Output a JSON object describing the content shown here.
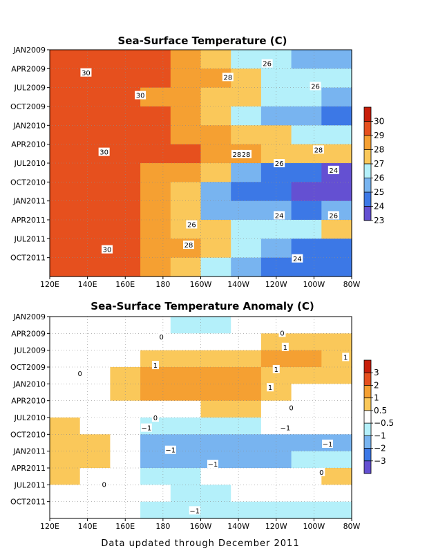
{
  "footer": "Data updated through December 2011",
  "chart_data": [
    {
      "type": "heatmap",
      "title": "Sea-Surface Temperature (C)",
      "x_ticks": [
        "120E",
        "140E",
        "160E",
        "180",
        "160W",
        "140W",
        "120W",
        "100W",
        "80W"
      ],
      "y_ticks": [
        "JAN2009",
        "APR2009",
        "JUL2009",
        "OCT2009",
        "JAN2010",
        "APR2010",
        "JUL2010",
        "OCT2010",
        "JAN2011",
        "APR2011",
        "JUL2011",
        "OCT2011"
      ],
      "xlim": [
        "120E",
        "80W"
      ],
      "ylim": [
        "JAN2009",
        "DEC2011"
      ],
      "grid": true,
      "colorbar": {
        "labels": [
          "30",
          "29",
          "28",
          "27",
          "26",
          "25",
          "24",
          "23"
        ],
        "colors": [
          "#c81e0a",
          "#e6501e",
          "#f5a032",
          "#fac85a",
          "#b4f0fa",
          "#78b4f0",
          "#3c78e6",
          "#6450d2"
        ]
      },
      "contour_labels": [
        "30",
        "30",
        "30",
        "30",
        "28",
        "28",
        "28",
        "26",
        "26",
        "28",
        "26",
        "24",
        "24",
        "26",
        "26",
        "28",
        "24"
      ],
      "cell_values": [
        [
          29.6,
          29.5,
          29.3,
          29.0,
          28.4,
          27.8,
          26.8,
          26.0,
          25.8,
          25.7
        ],
        [
          29.7,
          29.6,
          29.3,
          29.0,
          28.5,
          28.0,
          27.6,
          26.9,
          26.6,
          26.9
        ],
        [
          29.5,
          29.6,
          29.2,
          28.9,
          28.4,
          27.9,
          27.2,
          26.5,
          26.0,
          25.8
        ],
        [
          29.5,
          29.6,
          29.6,
          29.0,
          28.4,
          27.5,
          26.4,
          25.5,
          25.0,
          24.8
        ],
        [
          29.3,
          29.5,
          29.7,
          29.3,
          28.8,
          28.3,
          27.8,
          27.2,
          26.7,
          26.4
        ],
        [
          29.5,
          29.7,
          29.7,
          29.4,
          29.0,
          28.6,
          28.3,
          27.9,
          27.7,
          27.6
        ],
        [
          29.5,
          29.6,
          29.3,
          28.9,
          28.0,
          27.0,
          25.8,
          24.8,
          24.0,
          23.8
        ],
        [
          29.7,
          29.8,
          29.2,
          28.4,
          27.2,
          25.8,
          24.8,
          24.0,
          23.6,
          23.6
        ],
        [
          29.8,
          29.9,
          29.3,
          28.3,
          27.1,
          25.9,
          25.3,
          25.0,
          24.8,
          25.4
        ],
        [
          29.7,
          29.9,
          29.4,
          28.6,
          27.6,
          27.1,
          26.9,
          26.7,
          26.8,
          27.2
        ],
        [
          29.5,
          29.6,
          29.2,
          28.7,
          28.1,
          27.3,
          26.5,
          25.4,
          24.8,
          24.6
        ],
        [
          29.3,
          29.4,
          29.1,
          28.6,
          27.6,
          26.5,
          25.5,
          24.8,
          24.2,
          24.3
        ]
      ]
    },
    {
      "type": "heatmap",
      "title": "Sea-Surface Temperature Anomaly (C)",
      "x_ticks": [
        "120E",
        "140E",
        "160E",
        "180",
        "160W",
        "140W",
        "120W",
        "100W",
        "80W"
      ],
      "y_ticks": [
        "JAN2009",
        "APR2009",
        "JUL2009",
        "OCT2009",
        "JAN2010",
        "APR2010",
        "JUL2010",
        "OCT2010",
        "JAN2011",
        "APR2011",
        "JUL2011",
        "OCT2011"
      ],
      "xlim": [
        "120E",
        "80W"
      ],
      "ylim": [
        "JAN2009",
        "DEC2011"
      ],
      "grid": true,
      "colorbar": {
        "labels": [
          "3",
          "2",
          "1",
          "0.5",
          "−0.5",
          "−1",
          "−2",
          "−3"
        ],
        "colors": [
          "#c81e0a",
          "#e6501e",
          "#f5a032",
          "#fac85a",
          "#ffffff",
          "#b4f0fa",
          "#78b4f0",
          "#3c78e6",
          "#6450d2"
        ]
      },
      "contour_labels": [
        "0",
        "0",
        "1",
        "1",
        "1",
        "1",
        "1",
        "0",
        "0",
        "0",
        "−1",
        "−1",
        "−1",
        "−1",
        "−1",
        "0",
        "0",
        "−1"
      ],
      "cell_values": [
        [
          0.4,
          0.3,
          0.1,
          -0.4,
          -0.6,
          -0.6,
          -0.4,
          -0.2,
          0.2,
          0.3
        ],
        [
          0.1,
          0.0,
          0.0,
          0.0,
          0.2,
          0.2,
          0.3,
          0.5,
          0.7,
          0.9
        ],
        [
          0.1,
          0.1,
          0.2,
          0.5,
          0.8,
          0.7,
          0.9,
          1.2,
          1.0,
          0.9
        ],
        [
          0.0,
          0.1,
          0.5,
          1.0,
          1.1,
          1.1,
          1.0,
          0.8,
          0.7,
          0.5
        ],
        [
          0.0,
          0.1,
          0.6,
          1.2,
          1.3,
          1.3,
          1.1,
          0.8,
          0.4,
          0.2
        ],
        [
          0.1,
          0.0,
          0.0,
          0.2,
          0.4,
          0.5,
          0.6,
          0.4,
          0.1,
          0.0
        ],
        [
          0.7,
          0.4,
          -0.2,
          -0.7,
          -0.9,
          -0.7,
          -0.6,
          -0.4,
          -0.2,
          -0.1
        ],
        [
          0.6,
          0.5,
          -0.5,
          -1.1,
          -1.3,
          -1.4,
          -1.5,
          -1.5,
          -1.3,
          -1.2
        ],
        [
          0.7,
          0.7,
          -0.4,
          -1.1,
          -1.3,
          -1.3,
          -1.2,
          -1.1,
          -0.9,
          -0.7
        ],
        [
          0.5,
          0.3,
          -0.3,
          -0.8,
          -0.7,
          -0.5,
          -0.2,
          0.0,
          0.4,
          0.7
        ],
        [
          0.0,
          0.0,
          -0.2,
          -0.5,
          -0.6,
          -0.6,
          -0.5,
          -0.4,
          -0.3,
          0.0
        ],
        [
          -0.1,
          -0.1,
          -0.4,
          -0.8,
          -0.9,
          -0.9,
          -0.9,
          -0.9,
          -0.8,
          -0.8
        ]
      ]
    }
  ]
}
